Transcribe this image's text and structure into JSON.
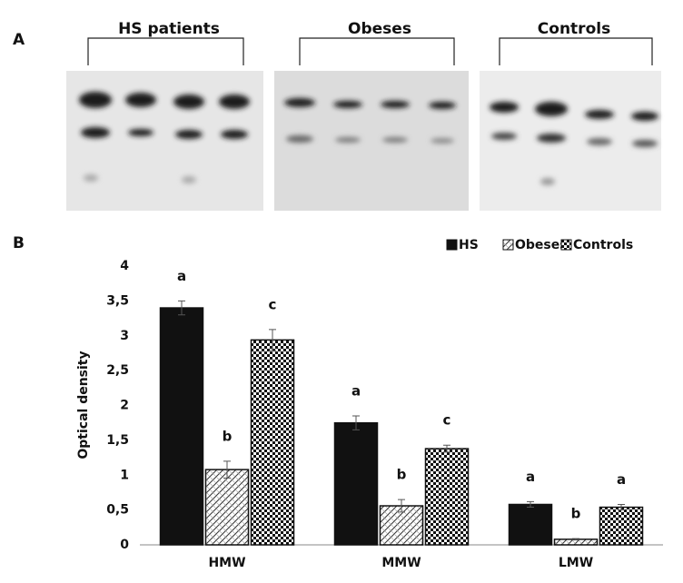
{
  "panel_a": {
    "label": "A",
    "groups": [
      "HS patients",
      "Obeses",
      "Controls"
    ]
  },
  "chart_data": {
    "type": "bar",
    "panel_label": "B",
    "categories": [
      "HMW",
      "MMW",
      "LMW"
    ],
    "y_label": "Optical density",
    "ylim": [
      0,
      4
    ],
    "yticks": [
      0,
      {
        "value": 0.5,
        "label": "0,5"
      },
      1,
      {
        "value": 1.5,
        "label": "1,5"
      },
      2,
      {
        "value": 2.5,
        "label": "2,5"
      },
      3,
      {
        "value": 3.5,
        "label": "3,5"
      },
      4
    ],
    "legend": "top-right",
    "series": [
      {
        "name": "HS",
        "color": "#111111",
        "pattern": "solid",
        "values": [
          3.4,
          1.75,
          0.58
        ],
        "errors": [
          0.1,
          0.1,
          0.04
        ],
        "letters": [
          "a",
          "a",
          "a"
        ]
      },
      {
        "name": "Obeses",
        "color": "#111111",
        "pattern": "hatch",
        "values": [
          1.08,
          0.56,
          0.08
        ],
        "errors": [
          0.12,
          0.09,
          0.01
        ],
        "letters": [
          "b",
          "b",
          "b"
        ]
      },
      {
        "name": "Controls",
        "color": "#111111",
        "pattern": "checker",
        "values": [
          2.94,
          1.38,
          0.54
        ],
        "errors": [
          0.15,
          0.05,
          0.04
        ],
        "letters": [
          "c",
          "c",
          "a"
        ]
      }
    ]
  }
}
